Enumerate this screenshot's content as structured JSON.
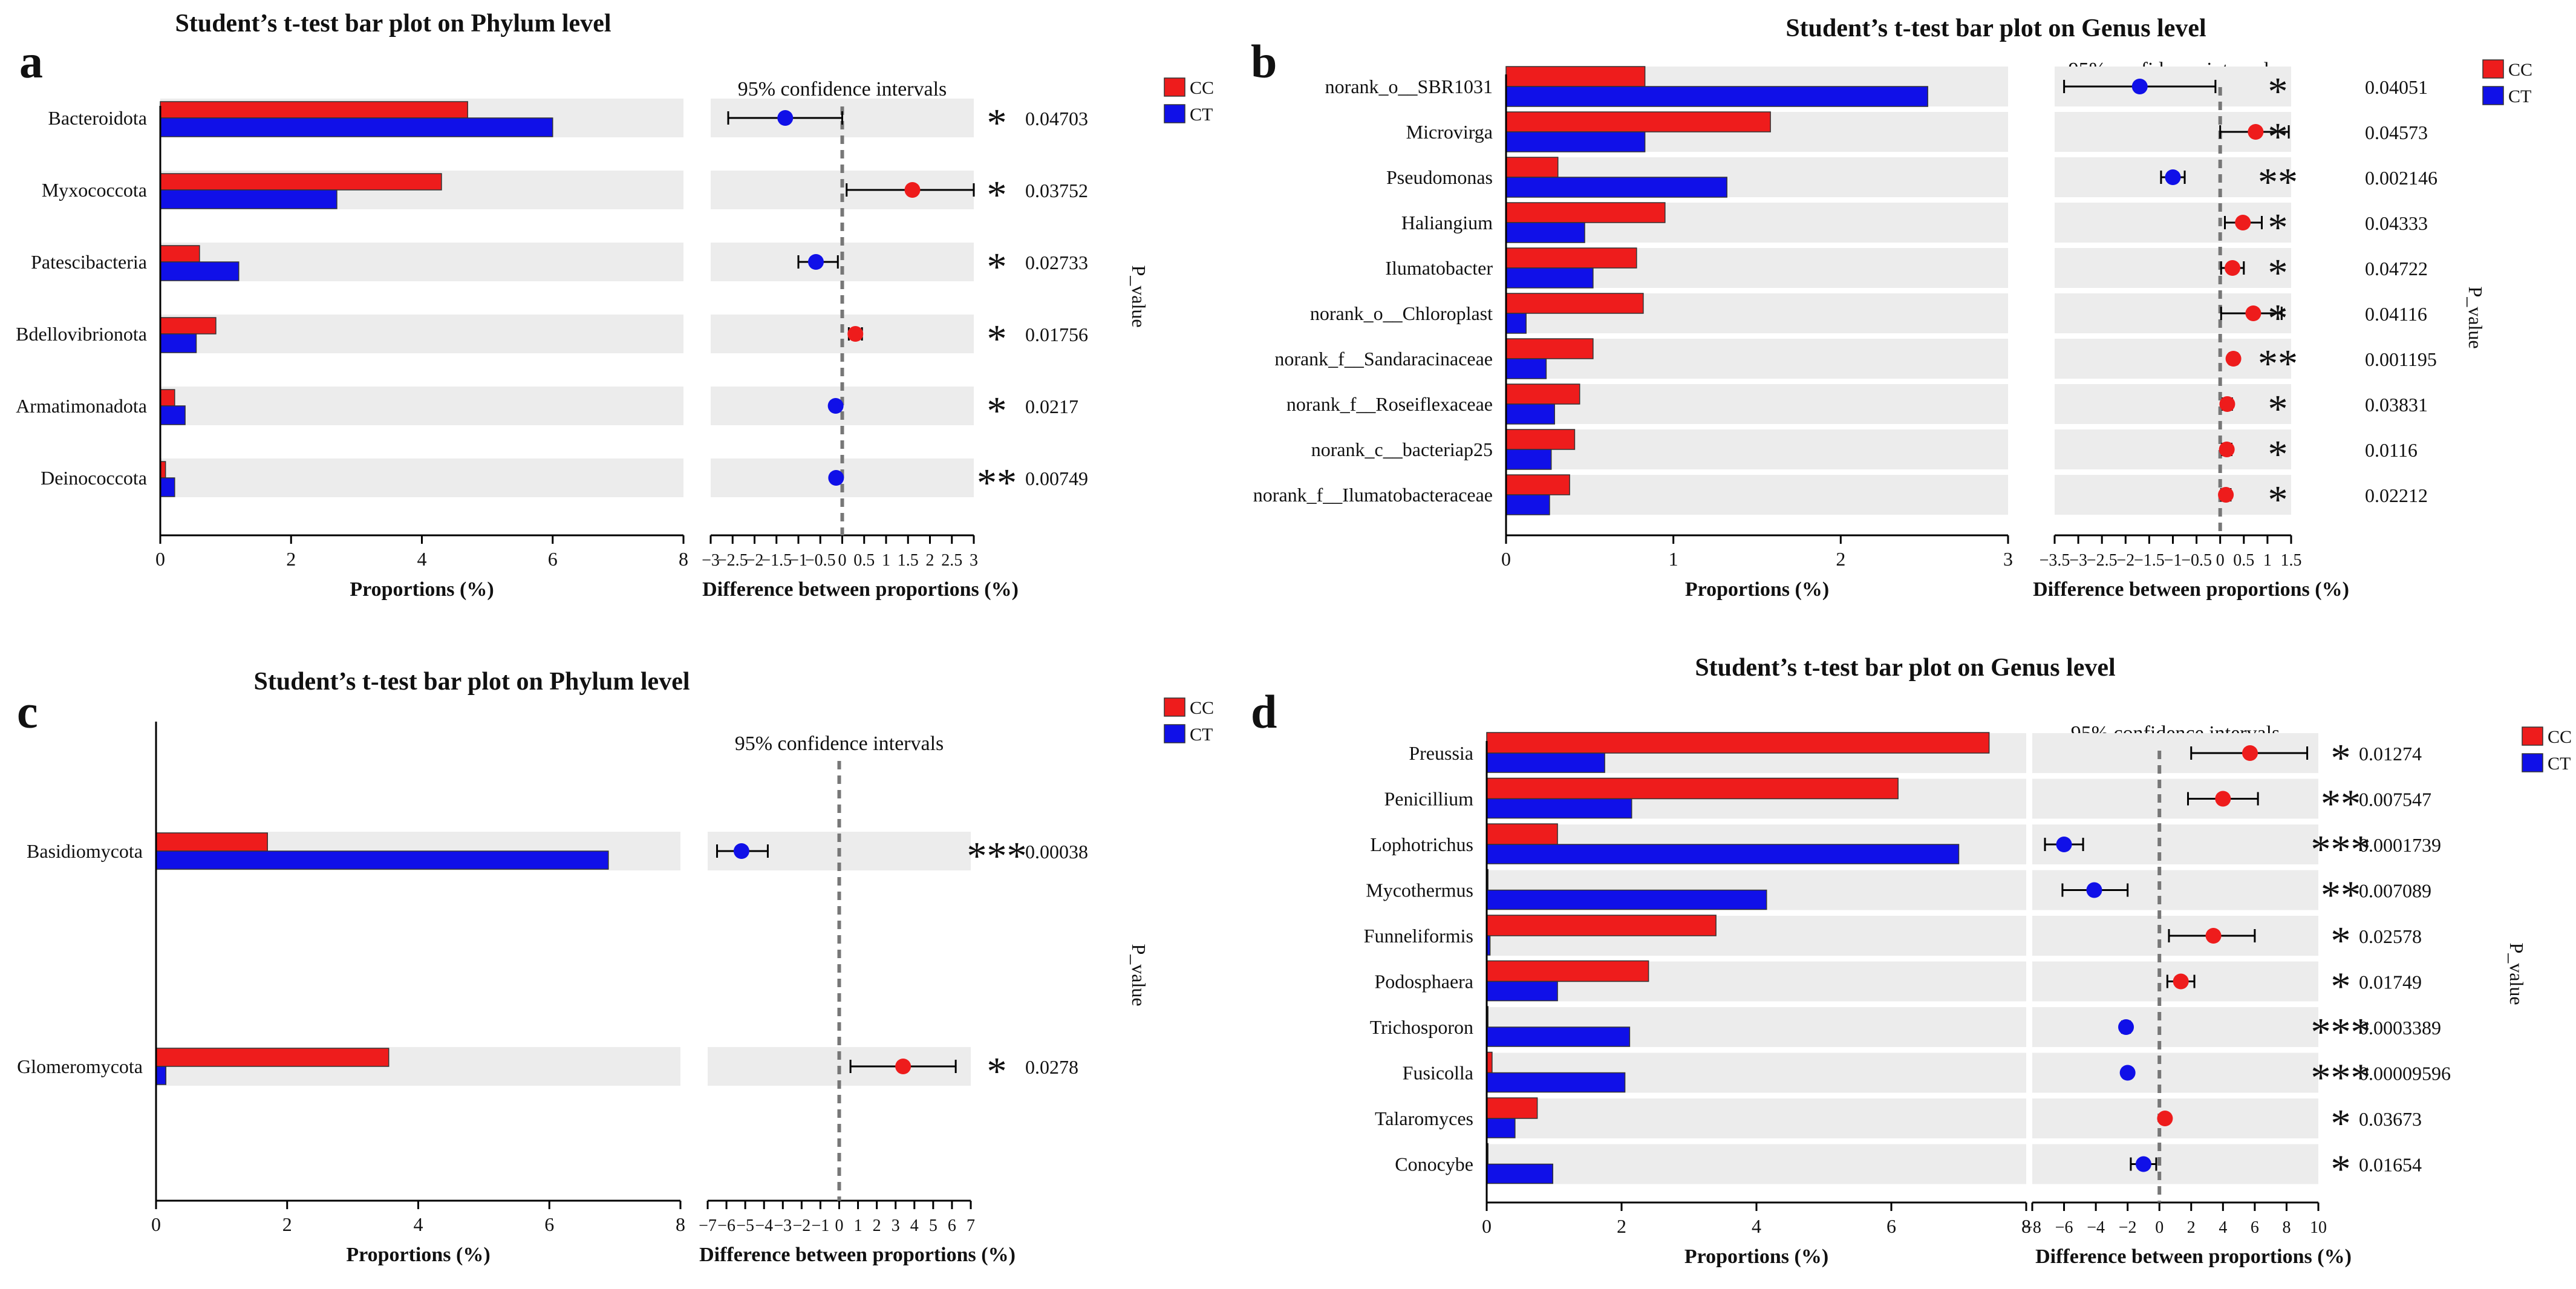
{
  "colors": {
    "cc": "#ee1c1c",
    "ct": "#1010e8",
    "band": "#ececec",
    "star": "#ee2222",
    "axis": "#000000",
    "dashed": "#777777"
  },
  "common": {
    "ci_title": "95% confidence intervals",
    "xlabel_left": "Proportions (%)",
    "xlabel_right": "Difference between proportions (%)",
    "pvalue_label": "P_value",
    "legend": [
      "CC",
      "CT"
    ]
  },
  "chart_data": [
    {
      "id": "a",
      "panel_letter": "a",
      "type": "bar",
      "title": "Student’s t-test bar plot on Phylum level",
      "categories": [
        "Bacteroidota",
        "Myxococcota",
        "Patescibacteria",
        "Bdellovibrionota",
        "Armatimonadota",
        "Deinococcota"
      ],
      "series": [
        {
          "name": "CC",
          "values": [
            4.7,
            4.3,
            0.6,
            0.85,
            0.22,
            0.08
          ]
        },
        {
          "name": "CT",
          "values": [
            6.0,
            2.7,
            1.2,
            0.55,
            0.38,
            0.22
          ]
        }
      ],
      "prop_ticks": [
        "0",
        "2",
        "4",
        "6",
        "8"
      ],
      "prop_range": [
        0,
        8
      ],
      "diff_ticks": [
        "−3",
        "−2.5",
        "−2",
        "−1.5",
        "−1",
        "−0.5",
        "0",
        "0.5",
        "1",
        "1.5",
        "2",
        "2.5",
        "3"
      ],
      "diff_tick_values": [
        -3,
        -2.5,
        -2,
        -1.5,
        -1,
        -0.5,
        0,
        0.5,
        1,
        1.5,
        2,
        2.5,
        3
      ],
      "diff_range": [
        -3,
        3
      ],
      "diff": [
        {
          "value": -1.3,
          "lo": -2.6,
          "hi": 0.0,
          "group": "CT"
        },
        {
          "value": 1.6,
          "lo": 0.1,
          "hi": 3.0,
          "group": "CC"
        },
        {
          "value": -0.6,
          "lo": -1.0,
          "hi": -0.1,
          "group": "CT"
        },
        {
          "value": 0.3,
          "lo": 0.15,
          "hi": 0.45,
          "group": "CC"
        },
        {
          "value": -0.15,
          "lo": -0.2,
          "hi": -0.1,
          "group": "CT"
        },
        {
          "value": -0.14,
          "lo": -0.2,
          "hi": -0.08,
          "group": "CT"
        }
      ],
      "stars": [
        "*",
        "*",
        "*",
        "*",
        "*",
        "**"
      ],
      "pvalues": [
        "0.04703",
        "0.03752",
        "0.02733",
        "0.01756",
        "0.0217",
        "0.00749"
      ]
    },
    {
      "id": "b",
      "panel_letter": "b",
      "type": "bar",
      "title": "Student’s t-test bar plot on Genus level",
      "categories": [
        "norank_o__SBR1031",
        "Microvirga",
        "Pseudomonas",
        "Haliangium",
        "Ilumatobacter",
        "norank_o__Chloroplast",
        "norank_f__Sandaracinaceae",
        "norank_f__Roseiflexaceae",
        "norank_c__bacteriap25",
        "norank_f__Ilumatobacteraceae"
      ],
      "series": [
        {
          "name": "CC",
          "values": [
            0.83,
            1.58,
            0.31,
            0.95,
            0.78,
            0.82,
            0.52,
            0.44,
            0.41,
            0.38
          ]
        },
        {
          "name": "CT",
          "values": [
            2.52,
            0.83,
            1.32,
            0.47,
            0.52,
            0.12,
            0.24,
            0.29,
            0.27,
            0.26
          ]
        }
      ],
      "prop_ticks": [
        "0",
        "1",
        "2",
        "3"
      ],
      "prop_range": [
        0,
        3
      ],
      "diff_ticks": [
        "−3.5",
        "−3",
        "−2.5",
        "−2",
        "−1.5",
        "−1",
        "−0.5",
        "0",
        "0.5",
        "1",
        "1.5"
      ],
      "diff_tick_values": [
        -3.5,
        -3,
        -2.5,
        -2,
        -1.5,
        -1,
        -0.5,
        0,
        0.5,
        1,
        1.5
      ],
      "diff_range": [
        -3.5,
        1.5
      ],
      "diff": [
        {
          "value": -1.7,
          "lo": -3.3,
          "hi": -0.1,
          "group": "CT"
        },
        {
          "value": 0.75,
          "lo": 0.0,
          "hi": 1.45,
          "group": "CC"
        },
        {
          "value": -1.0,
          "lo": -1.25,
          "hi": -0.75,
          "group": "CT"
        },
        {
          "value": 0.48,
          "lo": 0.1,
          "hi": 0.88,
          "group": "CC"
        },
        {
          "value": 0.26,
          "lo": 0.02,
          "hi": 0.5,
          "group": "CC"
        },
        {
          "value": 0.7,
          "lo": 0.02,
          "hi": 1.3,
          "group": "CC"
        },
        {
          "value": 0.28,
          "lo": 0.2,
          "hi": 0.36,
          "group": "CC"
        },
        {
          "value": 0.15,
          "lo": 0.05,
          "hi": 0.25,
          "group": "CC"
        },
        {
          "value": 0.14,
          "lo": 0.04,
          "hi": 0.24,
          "group": "CC"
        },
        {
          "value": 0.12,
          "lo": 0.02,
          "hi": 0.22,
          "group": "CC"
        }
      ],
      "stars": [
        "*",
        "*",
        "**",
        "*",
        "*",
        "*",
        "**",
        "*",
        "*",
        "*"
      ],
      "pvalues": [
        "0.04051",
        "0.04573",
        "0.002146",
        "0.04333",
        "0.04722",
        "0.04116",
        "0.001195",
        "0.03831",
        "0.0116",
        "0.02212"
      ]
    },
    {
      "id": "c",
      "panel_letter": "c",
      "type": "bar",
      "title": "Student’s t-test bar plot on Phylum level",
      "categories": [
        "Basidiomycota",
        "Glomeromycota"
      ],
      "series": [
        {
          "name": "CC",
          "values": [
            1.7,
            3.55
          ]
        },
        {
          "name": "CT",
          "values": [
            6.9,
            0.15
          ]
        }
      ],
      "prop_ticks": [
        "0",
        "2",
        "4",
        "6",
        "8"
      ],
      "prop_range": [
        0,
        8
      ],
      "diff_ticks": [
        "−7",
        "−6",
        "−5",
        "−4",
        "−3",
        "−2",
        "−1",
        "0",
        "1",
        "2",
        "3",
        "4",
        "5",
        "6",
        "7"
      ],
      "diff_tick_values": [
        -7,
        -6,
        -5,
        -4,
        -3,
        -2,
        -1,
        0,
        1,
        2,
        3,
        4,
        5,
        6,
        7
      ],
      "diff_range": [
        -7,
        7
      ],
      "diff": [
        {
          "value": -5.2,
          "lo": -6.5,
          "hi": -3.8,
          "group": "CT"
        },
        {
          "value": 3.4,
          "lo": 0.6,
          "hi": 6.2,
          "group": "CC"
        }
      ],
      "stars": [
        "***",
        "*"
      ],
      "pvalues": [
        "0.00038",
        "0.0278"
      ]
    },
    {
      "id": "d",
      "panel_letter": "d",
      "type": "bar",
      "title": "Student’s t-test bar plot on Genus level",
      "categories": [
        "Preussia",
        "Penicillium",
        "Lophotrichus",
        "Mycothermus",
        "Funneliformis",
        "Podosphaera",
        "Trichosporon",
        "Fusicolla",
        "Talaromyces",
        "Conocybe"
      ],
      "series": [
        {
          "name": "CC",
          "values": [
            7.45,
            6.1,
            1.05,
            0.02,
            3.4,
            2.4,
            0.02,
            0.08,
            0.75,
            0.02
          ]
        },
        {
          "name": "CT",
          "values": [
            1.75,
            2.15,
            7.0,
            4.15,
            0.05,
            1.05,
            2.12,
            2.05,
            0.42,
            0.98
          ]
        }
      ],
      "prop_ticks": [
        "0",
        "2",
        "4",
        "6",
        "8"
      ],
      "prop_range": [
        0,
        8
      ],
      "diff_ticks": [
        "−8",
        "−6",
        "−4",
        "−2",
        "0",
        "2",
        "4",
        "6",
        "8",
        "10"
      ],
      "diff_tick_values": [
        -8,
        -6,
        -4,
        -2,
        0,
        2,
        4,
        6,
        8,
        10
      ],
      "diff_range": [
        -8,
        10
      ],
      "diff": [
        {
          "value": 5.7,
          "lo": 2.0,
          "hi": 9.3,
          "group": "CC"
        },
        {
          "value": 4.0,
          "lo": 1.8,
          "hi": 6.2,
          "group": "CC"
        },
        {
          "value": -6.0,
          "lo": -7.2,
          "hi": -4.8,
          "group": "CT"
        },
        {
          "value": -4.1,
          "lo": -6.1,
          "hi": -2.0,
          "group": "CT"
        },
        {
          "value": 3.4,
          "lo": 0.6,
          "hi": 6.0,
          "group": "CC"
        },
        {
          "value": 1.35,
          "lo": 0.5,
          "hi": 2.2,
          "group": "CC"
        },
        {
          "value": -2.1,
          "lo": -2.35,
          "hi": -1.85,
          "group": "CT"
        },
        {
          "value": -2.0,
          "lo": -2.1,
          "hi": -1.9,
          "group": "CT"
        },
        {
          "value": 0.35,
          "lo": 0.25,
          "hi": 0.45,
          "group": "CC"
        },
        {
          "value": -1.0,
          "lo": -1.8,
          "hi": -0.2,
          "group": "CT"
        }
      ],
      "stars": [
        "*",
        "**",
        "***",
        "**",
        "*",
        "*",
        "***",
        "***",
        "*",
        "*"
      ],
      "pvalues": [
        "0.01274",
        "0.007547",
        "0.0001739",
        "0.007089",
        "0.02578",
        "0.01749",
        "0.0003389",
        "0.00009596",
        "0.03673",
        "0.01654"
      ]
    }
  ]
}
